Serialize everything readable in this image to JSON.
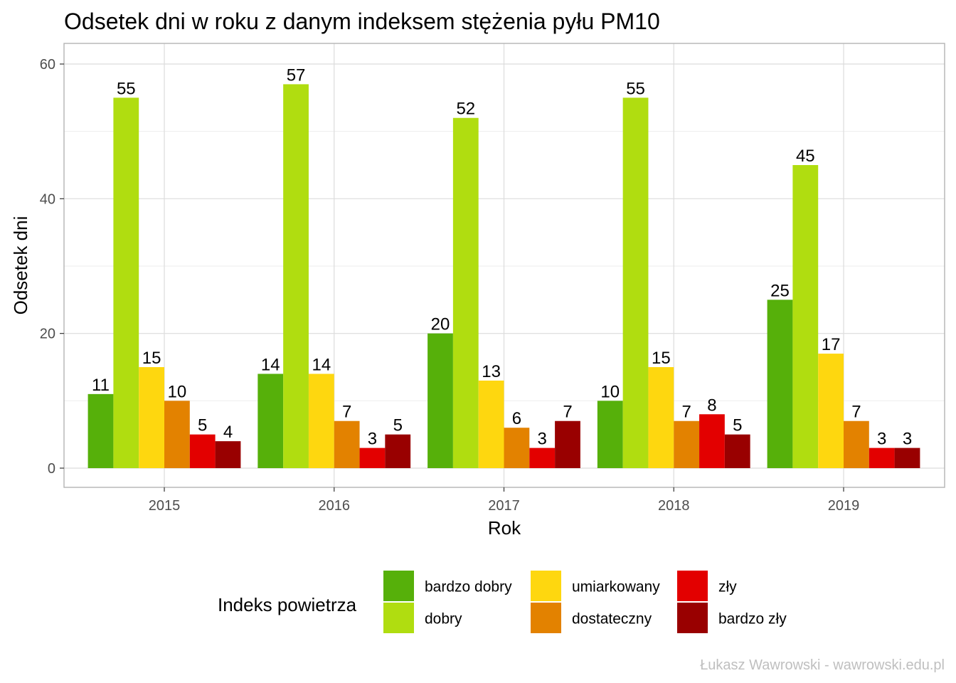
{
  "chart_data": {
    "type": "bar",
    "title": "Odsetek dni w roku z danym indeksem stężenia pyłu PM10",
    "xlabel": "Rok",
    "ylabel": "Odsetek dni",
    "ylim": [
      -2.8,
      60
    ],
    "y_ticks": [
      0,
      20,
      40,
      60
    ],
    "grid": true,
    "legend_placement": "bottom",
    "legend_title": "Indeks powietrza",
    "categories": [
      "2015",
      "2016",
      "2017",
      "2018",
      "2019"
    ],
    "series": [
      {
        "name": "bardzo dobry",
        "color": "#56b00a",
        "values": [
          11,
          14,
          20,
          10,
          25
        ]
      },
      {
        "name": "dobry",
        "color": "#b0dd10",
        "values": [
          55,
          57,
          52,
          55,
          45
        ]
      },
      {
        "name": "umiarkowany",
        "color": "#fed70f",
        "values": [
          15,
          14,
          13,
          15,
          17
        ]
      },
      {
        "name": "dostateczny",
        "color": "#e38200",
        "values": [
          10,
          7,
          6,
          7,
          7
        ]
      },
      {
        "name": "zły",
        "color": "#e30000",
        "values": [
          5,
          3,
          3,
          8,
          3
        ]
      },
      {
        "name": "bardzo zły",
        "color": "#990000",
        "values": [
          4,
          5,
          7,
          5,
          3
        ]
      }
    ],
    "caption": "Łukasz Wawrowski - wawrowski.edu.pl"
  }
}
